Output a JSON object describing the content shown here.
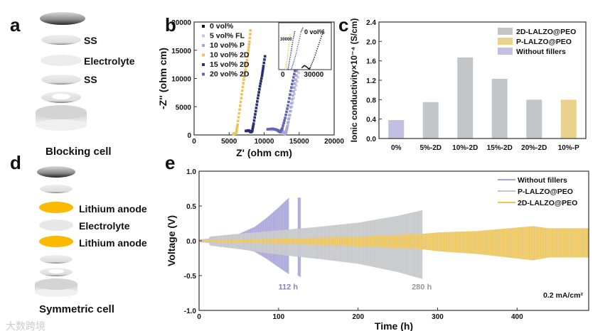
{
  "panel_labels": {
    "a": "a",
    "b": "b",
    "c": "c",
    "d": "d",
    "e": "e"
  },
  "panel_a": {
    "labels": [
      "SS",
      "Electrolyte",
      "SS"
    ],
    "caption": "Blocking cell"
  },
  "panel_d": {
    "labels": [
      "Lithium anode",
      "Electrolyte",
      "Lithium anode"
    ],
    "caption": "Symmetric cell"
  },
  "watermark": "大数跨境",
  "colors": {
    "gray": "#c3c6c8",
    "yellow": "#ecc45a",
    "lavender": "#aaa6d6",
    "li_yellow": "#fbb900",
    "navy": "#2b2f6e"
  },
  "chart_data": [
    {
      "id": "b",
      "type": "scatter",
      "xlabel": "Z' (ohm cm)",
      "ylabel": "-Z'' (ohm cm)",
      "xlim": [
        0,
        20000
      ],
      "ylim": [
        0,
        20000
      ],
      "xticks": [
        "0",
        "5000",
        "10000",
        "15000",
        "20000"
      ],
      "yticks": [
        "0",
        "5000",
        "10000",
        "15000",
        "20000"
      ],
      "legend_position": "top-left",
      "series": [
        {
          "name": "0 vol%",
          "color": "#111111",
          "points": []
        },
        {
          "name": "5 vol% FL",
          "color": "#c8c6e6",
          "points": [
            [
              11000,
              900
            ],
            [
              11600,
              1000
            ],
            [
              12200,
              800
            ],
            [
              12700,
              300
            ],
            [
              13000,
              200
            ],
            [
              13300,
              1200
            ],
            [
              13700,
              3500
            ],
            [
              14200,
              6500
            ],
            [
              14700,
              9500
            ],
            [
              15200,
              12500
            ],
            [
              15700,
              15500
            ],
            [
              16100,
              18000
            ]
          ]
        },
        {
          "name": "10 vol% P",
          "color": "#aaa6d6",
          "points": [
            [
              12300,
              600
            ],
            [
              12600,
              700
            ],
            [
              12900,
              400
            ],
            [
              13100,
              300
            ],
            [
              13300,
              1500
            ],
            [
              13700,
              4200
            ],
            [
              14100,
              7000
            ],
            [
              14500,
              9800
            ],
            [
              14900,
              12800
            ],
            [
              15300,
              15500
            ],
            [
              15700,
              19800
            ]
          ]
        },
        {
          "name": "10 vol% 2D",
          "color": "#ecc45a",
          "points": [
            [
              5600,
              150
            ],
            [
              5800,
              300
            ],
            [
              6000,
              250
            ],
            [
              6200,
              1800
            ],
            [
              6500,
              4500
            ],
            [
              6800,
              7200
            ],
            [
              7100,
              9800
            ],
            [
              7400,
              12000
            ],
            [
              7700,
              14500
            ],
            [
              7900,
              16500
            ],
            [
              8100,
              19200
            ]
          ]
        },
        {
          "name": "15 vol% 2D",
          "color": "#2b2f6e",
          "points": [
            [
              7400,
              700
            ],
            [
              7800,
              800
            ],
            [
              8100,
              500
            ],
            [
              8300,
              700
            ],
            [
              8500,
              2000
            ],
            [
              8800,
              4200
            ],
            [
              9100,
              6500
            ],
            [
              9400,
              8600
            ],
            [
              9700,
              10500
            ],
            [
              9900,
              12200
            ],
            [
              10200,
              14500
            ]
          ]
        },
        {
          "name": "20 vol% 2D",
          "color": "#6465b0",
          "points": [
            [
              10500,
              1000
            ],
            [
              11200,
              1100
            ],
            [
              11800,
              900
            ],
            [
              12300,
              500
            ],
            [
              12600,
              1200
            ],
            [
              13000,
              3000
            ],
            [
              13400,
              5200
            ],
            [
              13800,
              7800
            ],
            [
              14200,
              10200
            ],
            [
              14600,
              12500
            ]
          ]
        }
      ],
      "inset": {
        "xticks": [
          "0",
          "30000"
        ],
        "yticks": [
          "30000"
        ],
        "annotation": "0 vol%",
        "xlim": [
          0,
          45000
        ],
        "ylim": [
          0,
          45000
        ],
        "series": [
          {
            "name": "0 vol%",
            "color": "#111111",
            "points": [
              [
                20000,
                2000
              ],
              [
                22000,
                4000
              ],
              [
                24000,
                2500
              ],
              [
                26000,
                500
              ],
              [
                27000,
                2000
              ],
              [
                30000,
                10000
              ],
              [
                33000,
                20000
              ],
              [
                36000,
                30000
              ],
              [
                39000,
                40000
              ]
            ]
          },
          {
            "name": "20 vol% 2D",
            "color": "#6465b0",
            "points": [
              [
                11000,
                1000
              ],
              [
                13000,
                8000
              ],
              [
                15000,
                16000
              ],
              [
                17000,
                26000
              ],
              [
                19000,
                36000
              ],
              [
                21000,
                41000
              ]
            ]
          },
          {
            "name": "10 vol% 2D",
            "color": "#ecc45a",
            "points": [
              [
                6000,
                300
              ],
              [
                7000,
                8000
              ],
              [
                8000,
                16000
              ],
              [
                9000,
                26000
              ],
              [
                10000,
                36000
              ]
            ]
          },
          {
            "name": "15 vol% 2D",
            "color": "#2b2f6e",
            "points": [
              [
                8000,
                700
              ],
              [
                9500,
                10000
              ],
              [
                11000,
                20000
              ],
              [
                12500,
                30000
              ],
              [
                14000,
                38000
              ]
            ]
          }
        ]
      }
    },
    {
      "id": "c",
      "type": "bar",
      "ylabel": "Ionic conductivity×10⁻⁴ (S/cm)",
      "ylim": [
        0,
        2.4
      ],
      "yticks": [
        "0.0",
        "0.4",
        "0.8",
        "1.2",
        "1.6",
        "2.0",
        "2.4"
      ],
      "categories": [
        "0%",
        "5%-2D",
        "10%-2D",
        "15%-2D",
        "20%-2D",
        "10%-P"
      ],
      "values": [
        0.38,
        0.75,
        1.67,
        1.23,
        0.8,
        0.8
      ],
      "bar_groups": [
        "Without fillers",
        "2D-LALZO@PEO",
        "2D-LALZO@PEO",
        "2D-LALZO@PEO",
        "2D-LALZO@PEO",
        "P-LALZO@PEO"
      ],
      "legend": [
        {
          "name": "2D-LALZO@PEO",
          "color": "#c3c6c8"
        },
        {
          "name": "P-LALZO@PEO",
          "color": "#ecd18c"
        },
        {
          "name": "Without fillers",
          "color": "#c2bfe0"
        }
      ],
      "legend_position": "top-right"
    },
    {
      "id": "e",
      "type": "area",
      "xlabel": "Time (h)",
      "ylabel": "Voltage (V)",
      "xlim": [
        0,
        490
      ],
      "ylim": [
        -1.0,
        1.0
      ],
      "xticks": [
        "0",
        "100",
        "200",
        "300",
        "400"
      ],
      "yticks": [
        "-1.0",
        "-0.5",
        "0.0",
        "0.5",
        "1.0"
      ],
      "legend_position": "top-right",
      "annotations": [
        {
          "text": "112 h",
          "x": 112,
          "y": -0.66,
          "color": "#8a80c4"
        },
        {
          "text": "280 h",
          "x": 280,
          "y": -0.66,
          "color": "#9a9a9a"
        }
      ],
      "condition": "0.2 mA/cm²",
      "series": [
        {
          "name": "Without fillers",
          "color": "#a7a3d8",
          "envelope": [
            [
              0,
              0.02,
              -0.02
            ],
            [
              12,
              0.03,
              -0.03
            ],
            [
              14,
              0.06,
              -0.06
            ],
            [
              50,
              0.1,
              -0.1
            ],
            [
              70,
              0.2,
              -0.16
            ],
            [
              85,
              0.33,
              -0.26
            ],
            [
              100,
              0.48,
              -0.38
            ],
            [
              113,
              0.62,
              -0.48
            ]
          ],
          "segment2": [
            [
              124,
              0.62,
              -0.5
            ],
            [
              128,
              0.62,
              -0.52
            ]
          ]
        },
        {
          "name": "P-LALZO@PEO",
          "color": "#c3c6c8",
          "envelope": [
            [
              0,
              0.02,
              -0.02
            ],
            [
              12,
              0.03,
              -0.03
            ],
            [
              14,
              0.06,
              -0.07
            ],
            [
              50,
              0.1,
              -0.12
            ],
            [
              100,
              0.15,
              -0.2
            ],
            [
              150,
              0.2,
              -0.26
            ],
            [
              200,
              0.26,
              -0.33
            ],
            [
              250,
              0.36,
              -0.45
            ],
            [
              281,
              0.44,
              -0.55
            ]
          ]
        },
        {
          "name": "2D-LALZO@PEO",
          "color": "#ecc45a",
          "envelope": [
            [
              0,
              0.01,
              -0.01
            ],
            [
              100,
              0.03,
              -0.04
            ],
            [
              200,
              0.06,
              -0.08
            ],
            [
              280,
              0.1,
              -0.12
            ],
            [
              300,
              0.12,
              -0.15
            ],
            [
              350,
              0.14,
              -0.19
            ],
            [
              420,
              0.21,
              -0.28
            ],
            [
              440,
              0.18,
              -0.24
            ],
            [
              490,
              0.18,
              -0.24
            ]
          ]
        }
      ]
    }
  ]
}
